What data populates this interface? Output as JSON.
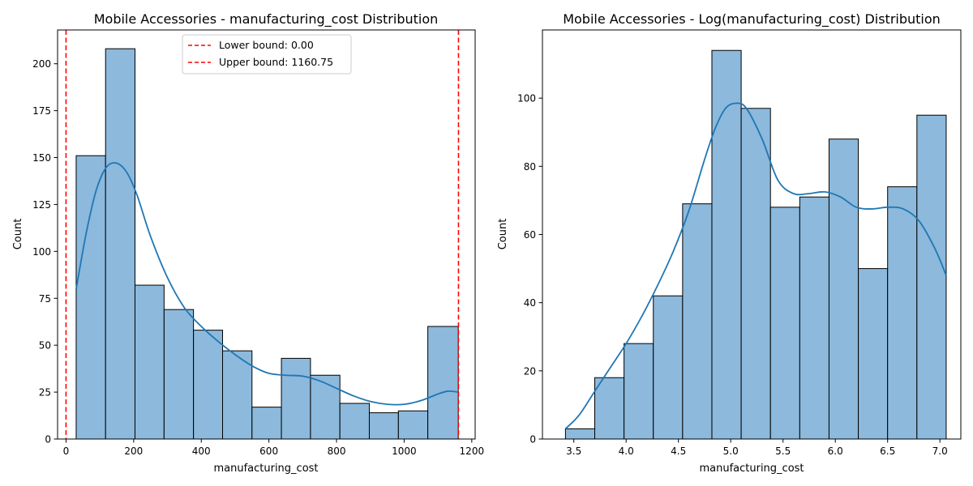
{
  "chart_data": [
    {
      "type": "bar",
      "title": "Mobile Accessories - manufacturing_cost Distribution",
      "xlabel": "manufacturing_cost",
      "ylabel": "Count",
      "xlim": [
        -25,
        1210
      ],
      "ylim": [
        0,
        218
      ],
      "xticks": [
        0,
        200,
        400,
        600,
        800,
        1000,
        1200
      ],
      "yticks": [
        0,
        25,
        50,
        75,
        100,
        125,
        150,
        175,
        200
      ],
      "grid": false,
      "bar_color": "#8cb9dc",
      "edge_color": "#000000",
      "kde_color": "#1f77b4",
      "bin_edges": [
        30,
        117,
        204,
        290,
        377,
        463,
        550,
        637,
        723,
        810,
        897,
        983,
        1070,
        1160
      ],
      "values": [
        151,
        208,
        82,
        69,
        58,
        47,
        17,
        43,
        34,
        19,
        14,
        15,
        60
      ],
      "kde": {
        "x": [
          30,
          60,
          90,
          120,
          150,
          180,
          210,
          250,
          300,
          350,
          400,
          450,
          500,
          550,
          600,
          650,
          700,
          750,
          800,
          850,
          900,
          950,
          1000,
          1050,
          1100,
          1130,
          1160
        ],
        "y": [
          80,
          110,
          133,
          145,
          147,
          142,
          130,
          108,
          86,
          70,
          60,
          52,
          45,
          39,
          35,
          34,
          33.5,
          31,
          27,
          23,
          20,
          18.5,
          18.5,
          20.5,
          24,
          25.5,
          25
        ]
      },
      "reference_lines": [
        {
          "x": 0.0,
          "label": "Lower bound: 0.00",
          "color": "#ff0000",
          "style": "dashed"
        },
        {
          "x": 1160.75,
          "label": "Upper bound: 1160.75",
          "color": "#ff0000",
          "style": "dashed"
        }
      ],
      "legend_position": "top-center"
    },
    {
      "type": "bar",
      "title": "Mobile Accessories - Log(manufacturing_cost) Distribution",
      "xlabel": "manufacturing_cost",
      "ylabel": "Count",
      "xlim": [
        3.2,
        7.2
      ],
      "ylim": [
        0,
        120
      ],
      "xticks": [
        3.5,
        4.0,
        4.5,
        5.0,
        5.5,
        6.0,
        6.5,
        7.0
      ],
      "xtick_labels": [
        "3.5",
        "4.0",
        "4.5",
        "5.0",
        "5.5",
        "6.0",
        "6.5",
        "7.0"
      ],
      "yticks": [
        0,
        20,
        40,
        60,
        80,
        100
      ],
      "grid": false,
      "bar_color": "#8cb9dc",
      "edge_color": "#000000",
      "kde_color": "#1f77b4",
      "bin_edges": [
        3.42,
        3.7,
        3.98,
        4.26,
        4.54,
        4.82,
        5.1,
        5.38,
        5.66,
        5.94,
        6.22,
        6.5,
        6.78,
        7.06
      ],
      "values": [
        3,
        18,
        28,
        42,
        69,
        114,
        97,
        68,
        71,
        88,
        50,
        74,
        95
      ],
      "kde": {
        "x": [
          3.42,
          3.55,
          3.7,
          3.85,
          4.0,
          4.15,
          4.3,
          4.45,
          4.6,
          4.75,
          4.85,
          4.95,
          5.05,
          5.15,
          5.3,
          5.45,
          5.6,
          5.75,
          5.9,
          6.05,
          6.2,
          6.35,
          6.5,
          6.65,
          6.8,
          6.95,
          7.06
        ],
        "y": [
          3,
          7,
          14,
          21,
          28,
          36,
          45,
          55,
          67,
          82,
          91,
          97,
          98.5,
          97,
          88,
          76,
          72,
          72,
          72.5,
          71,
          68,
          67.5,
          68,
          67.5,
          64,
          56,
          48
        ]
      },
      "legend_position": "none"
    }
  ]
}
